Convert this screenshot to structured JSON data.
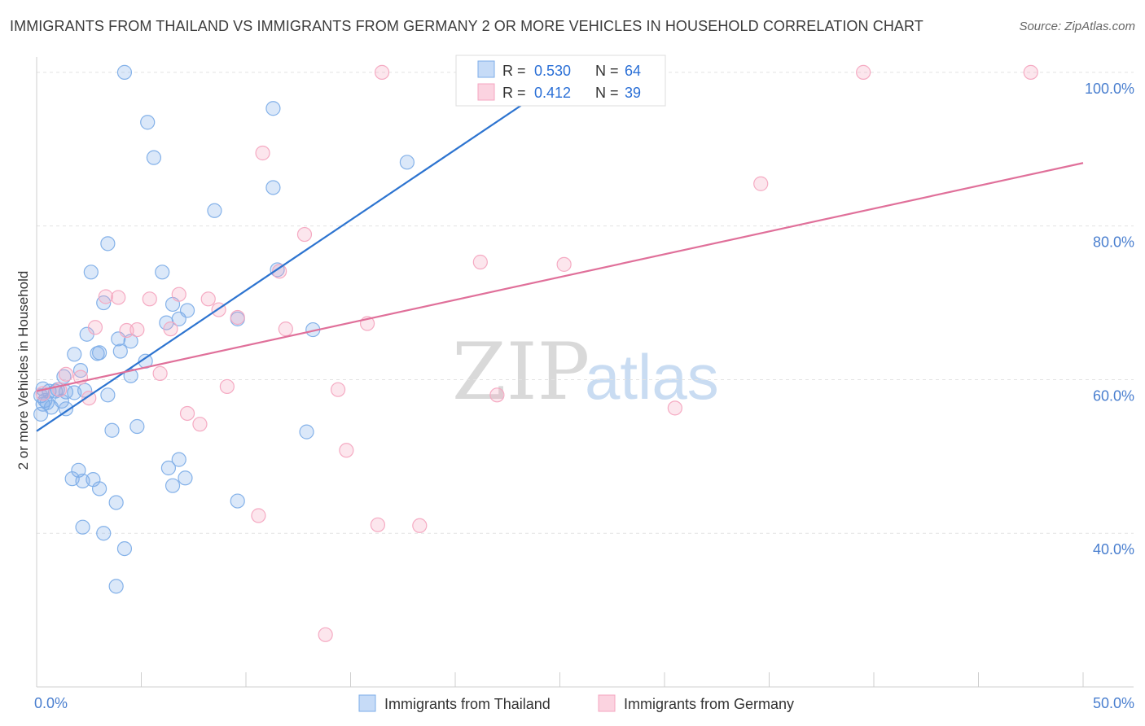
{
  "title": "IMMIGRANTS FROM THAILAND VS IMMIGRANTS FROM GERMANY 2 OR MORE VEHICLES IN HOUSEHOLD CORRELATION CHART",
  "source": "Source: ZipAtlas.com",
  "watermark": {
    "zip": "ZIP",
    "atlas": "atlas"
  },
  "chart_data": {
    "type": "scatter",
    "ylabel": "2 or more Vehicles in Household",
    "xlim": [
      0,
      50
    ],
    "ylim": [
      20,
      102
    ],
    "x_tick_labels": [
      {
        "value": 0,
        "label": "0.0%"
      },
      {
        "value": 50,
        "label": "50.0%"
      }
    ],
    "y_tick_labels": [
      {
        "value": 40,
        "label": "40.0%"
      },
      {
        "value": 60,
        "label": "60.0%"
      },
      {
        "value": 80,
        "label": "80.0%"
      },
      {
        "value": 100,
        "label": "100.0%"
      }
    ],
    "grid": true,
    "legend_placement": "top-center",
    "series": [
      {
        "name": "Immigrants from Thailand",
        "color": "#7eaee8",
        "line_color": "#2d74d0",
        "R": "0.530",
        "N": "64",
        "trend": {
          "x": [
            0,
            25.5
          ],
          "y": [
            53.3,
            100
          ]
        },
        "points": [
          [
            4.2,
            100
          ],
          [
            5.3,
            93.5
          ],
          [
            5.6,
            88.9
          ],
          [
            11.3,
            95.3
          ],
          [
            17.7,
            88.3
          ],
          [
            8.5,
            82
          ],
          [
            11.3,
            85
          ],
          [
            3.4,
            77.7
          ],
          [
            2.6,
            74
          ],
          [
            6.0,
            74
          ],
          [
            11.5,
            74.3
          ],
          [
            3.2,
            70
          ],
          [
            6.5,
            69.8
          ],
          [
            7.2,
            69
          ],
          [
            6.2,
            67.4
          ],
          [
            6.8,
            67.9
          ],
          [
            9.6,
            67.9
          ],
          [
            13.2,
            66.5
          ],
          [
            2.4,
            65.9
          ],
          [
            3.9,
            65.3
          ],
          [
            4.5,
            65
          ],
          [
            1.8,
            63.3
          ],
          [
            2.9,
            63.4
          ],
          [
            3.0,
            63.5
          ],
          [
            4.0,
            63.7
          ],
          [
            5.2,
            62.4
          ],
          [
            2.1,
            61.2
          ],
          [
            1.3,
            60.4
          ],
          [
            4.5,
            60.5
          ],
          [
            0.3,
            58.8
          ],
          [
            0.6,
            58.5
          ],
          [
            1.0,
            58.7
          ],
          [
            1.4,
            58.4
          ],
          [
            0.2,
            57.9
          ],
          [
            0.4,
            57.3
          ],
          [
            1.8,
            58.3
          ],
          [
            2.3,
            58.6
          ],
          [
            3.4,
            58
          ],
          [
            0.3,
            56.8
          ],
          [
            0.7,
            56.4
          ],
          [
            1.4,
            56.2
          ],
          [
            0.5,
            57
          ],
          [
            1.2,
            57.2
          ],
          [
            0.2,
            55.5
          ],
          [
            3.6,
            53.4
          ],
          [
            4.8,
            53.9
          ],
          [
            12.9,
            53.2
          ],
          [
            6.3,
            48.5
          ],
          [
            6.8,
            49.6
          ],
          [
            2.0,
            48.2
          ],
          [
            1.7,
            47.1
          ],
          [
            2.7,
            47.0
          ],
          [
            2.2,
            46.8
          ],
          [
            6.5,
            46.2
          ],
          [
            7.1,
            47.2
          ],
          [
            3.0,
            45.8
          ],
          [
            9.6,
            44.2
          ],
          [
            3.8,
            44.0
          ],
          [
            2.2,
            40.8
          ],
          [
            3.2,
            40.0
          ],
          [
            4.2,
            38.0
          ],
          [
            3.8,
            33.1
          ],
          [
            22.2,
            100
          ],
          [
            0.9,
            58.5
          ]
        ]
      },
      {
        "name": "Immigrants from Germany",
        "color": "#f4a6c0",
        "line_color": "#e0709a",
        "R": "0.412",
        "N": "39",
        "trend": {
          "x": [
            0,
            50
          ],
          "y": [
            58.5,
            88.2
          ]
        },
        "points": [
          [
            16.5,
            100
          ],
          [
            39.5,
            100
          ],
          [
            47.5,
            100
          ],
          [
            10.8,
            89.5
          ],
          [
            34.6,
            85.5
          ],
          [
            12.8,
            78.9
          ],
          [
            21.2,
            75.3
          ],
          [
            25.2,
            75
          ],
          [
            11.6,
            74.1
          ],
          [
            3.3,
            70.8
          ],
          [
            3.9,
            70.7
          ],
          [
            5.4,
            70.5
          ],
          [
            6.8,
            71.1
          ],
          [
            8.2,
            70.5
          ],
          [
            8.7,
            69.1
          ],
          [
            9.6,
            68.1
          ],
          [
            2.8,
            66.8
          ],
          [
            4.3,
            66.4
          ],
          [
            4.8,
            66.5
          ],
          [
            6.4,
            66.6
          ],
          [
            11.9,
            66.6
          ],
          [
            15.8,
            67.3
          ],
          [
            5.9,
            60.8
          ],
          [
            2.1,
            60.3
          ],
          [
            1.4,
            60.7
          ],
          [
            9.1,
            59.1
          ],
          [
            14.4,
            58.7
          ],
          [
            22.0,
            58
          ],
          [
            30.5,
            56.3
          ],
          [
            7.2,
            55.6
          ],
          [
            7.8,
            54.2
          ],
          [
            14.8,
            50.8
          ],
          [
            10.6,
            42.3
          ],
          [
            16.3,
            41.1
          ],
          [
            18.3,
            41.0
          ],
          [
            13.8,
            26.8
          ],
          [
            2.5,
            57.6
          ],
          [
            1.1,
            58.7
          ],
          [
            0.3,
            58.2
          ]
        ]
      }
    ]
  },
  "legend": {
    "r_label": "R =",
    "n_label": "N ="
  }
}
